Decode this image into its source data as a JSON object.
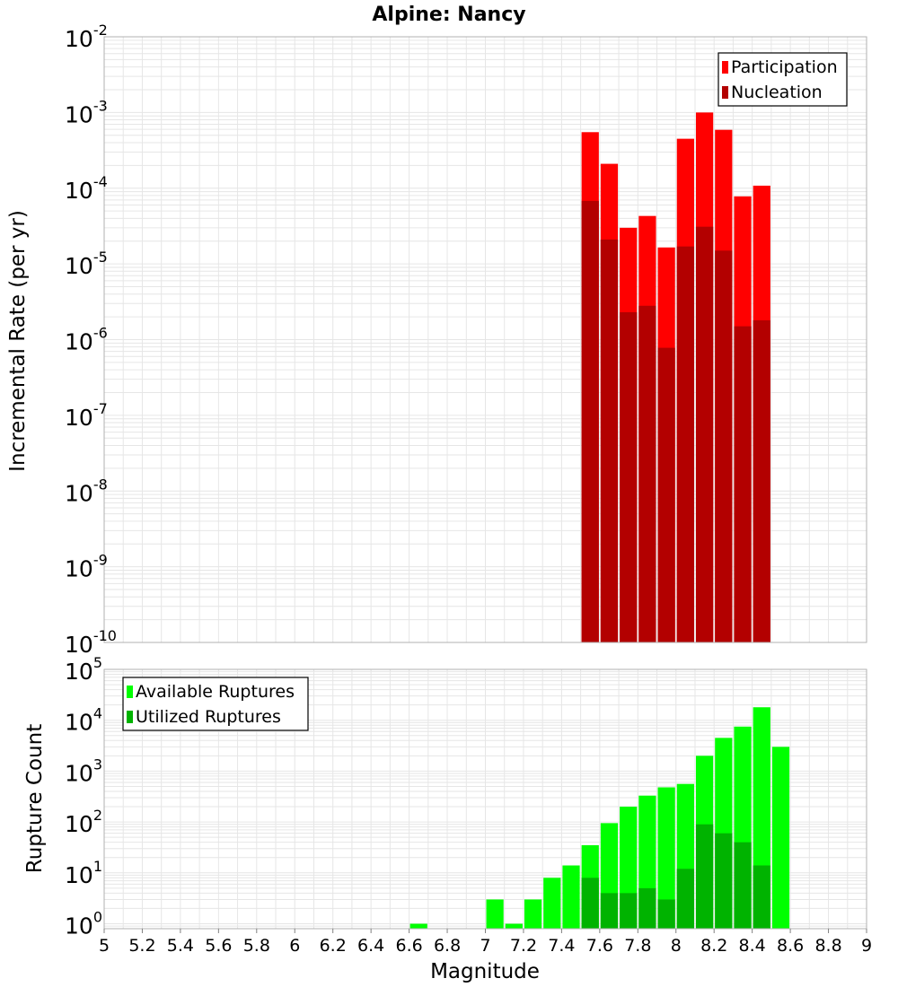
{
  "chart_data": [
    {
      "type": "bar",
      "title": "Alpine: Nancy",
      "xlabel": "",
      "ylabel": "Incremental Rate (per yr)",
      "yscale": "log",
      "ylim": [
        1e-10,
        0.01
      ],
      "xlim": [
        5,
        9
      ],
      "bar_width": 0.1,
      "legend_position": "top-right",
      "y_tick_exponents": [
        "-10",
        "-9",
        "-8",
        "-7",
        "-6",
        "-5",
        "-4",
        "-3",
        "-2"
      ],
      "y_tick_base": "10",
      "grid": true,
      "series": [
        {
          "name": "Participation",
          "color": "#ff0000",
          "x": [
            7.55,
            7.65,
            7.75,
            7.85,
            7.95,
            8.05,
            8.15,
            8.25,
            8.35,
            8.45
          ],
          "values": [
            0.00055,
            0.00021,
            3e-05,
            4.3e-05,
            1.65e-05,
            0.00045,
            0.001,
            0.00059,
            7.8e-05,
            0.000108
          ]
        },
        {
          "name": "Nucleation",
          "color": "#b30000",
          "x": [
            7.55,
            7.65,
            7.75,
            7.85,
            7.95,
            8.05,
            8.15,
            8.25,
            8.35,
            8.45
          ],
          "values": [
            6.8e-05,
            2.1e-05,
            2.3e-06,
            2.8e-06,
            7.8e-07,
            1.7e-05,
            3.1e-05,
            1.5e-05,
            1.5e-06,
            1.8e-06
          ]
        }
      ]
    },
    {
      "type": "bar",
      "title": "",
      "xlabel": "Magnitude",
      "ylabel": "Rupture Count",
      "yscale": "log",
      "ylim": [
        0.8,
        100000.0
      ],
      "xlim": [
        5,
        9
      ],
      "bar_width": 0.1,
      "legend_position": "top-left",
      "y_tick_exponents": [
        "0",
        "1",
        "2",
        "3",
        "4",
        "5"
      ],
      "y_tick_base": "10",
      "x_ticks": [
        "5",
        "5.2",
        "5.4",
        "5.6",
        "5.8",
        "6",
        "6.2",
        "6.4",
        "6.6",
        "6.8",
        "7",
        "7.2",
        "7.4",
        "7.6",
        "7.8",
        "8",
        "8.2",
        "8.4",
        "8.6",
        "8.8",
        "9"
      ],
      "grid": true,
      "series": [
        {
          "name": "Available Ruptures",
          "color": "#00ff00",
          "x": [
            6.65,
            7.05,
            7.15,
            7.25,
            7.35,
            7.45,
            7.55,
            7.65,
            7.75,
            7.85,
            7.95,
            8.05,
            8.15,
            8.25,
            8.35,
            8.45,
            8.55
          ],
          "values": [
            1,
            3,
            1,
            3,
            8,
            14,
            35,
            95,
            200,
            330,
            480,
            560,
            2000,
            4500,
            7500,
            18000,
            3000
          ]
        },
        {
          "name": "Utilized Ruptures",
          "color": "#00b300",
          "x": [
            7.55,
            7.65,
            7.75,
            7.85,
            7.95,
            8.05,
            8.15,
            8.25,
            8.35,
            8.45
          ],
          "values": [
            8,
            4,
            4,
            5,
            3,
            12,
            90,
            60,
            40,
            14
          ]
        }
      ]
    }
  ]
}
